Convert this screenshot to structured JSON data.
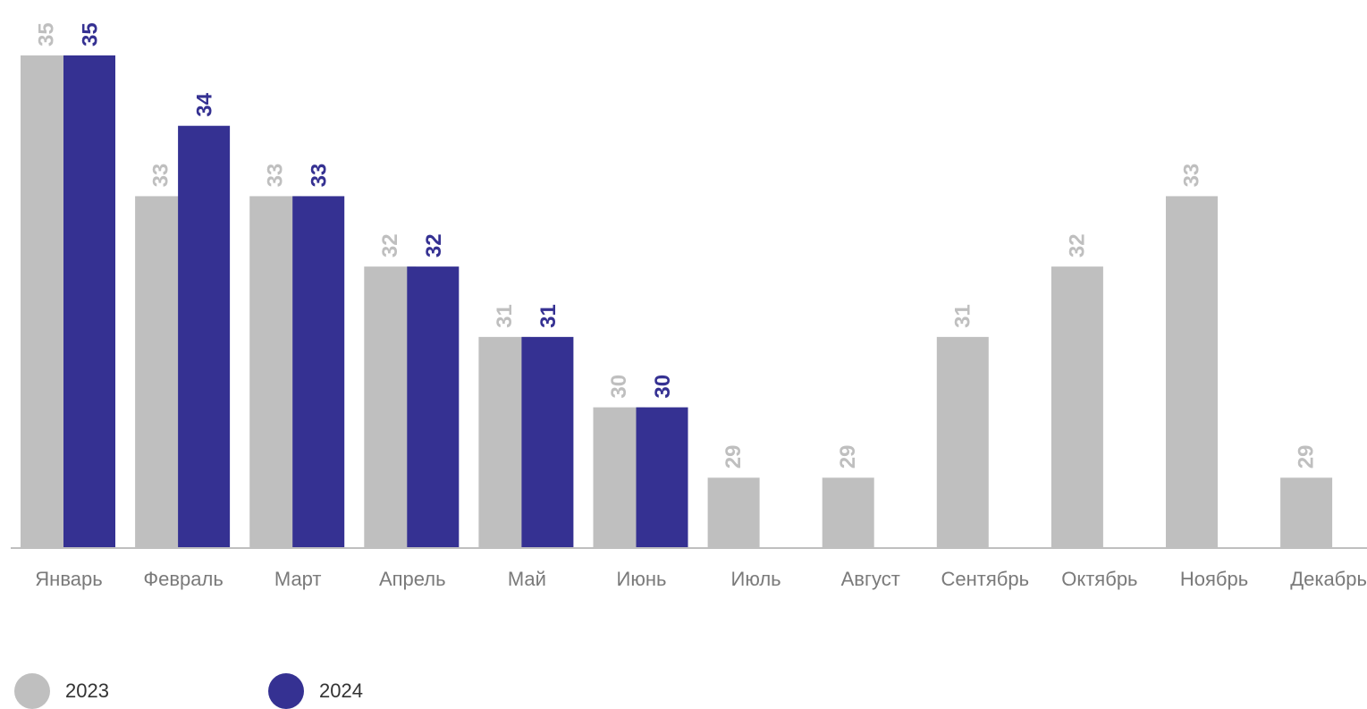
{
  "chart_data": {
    "type": "bar",
    "categories": [
      "Январь",
      "Февраль",
      "Март",
      "Апрель",
      "Май",
      "Июнь",
      "Июль",
      "Август",
      "Сентябрь",
      "Октябрь",
      "Ноябрь",
      "Декабрь"
    ],
    "series": [
      {
        "name": "2023",
        "color": "#bfbfbf",
        "label_color": "#bfbfbf",
        "values": [
          35,
          33,
          33,
          32,
          31,
          30,
          29,
          29,
          31,
          32,
          33,
          29
        ]
      },
      {
        "name": "2024",
        "color": "#353192",
        "label_color": "#353192",
        "values": [
          35,
          34,
          33,
          32,
          31,
          30,
          null,
          null,
          null,
          null,
          null,
          null
        ]
      }
    ],
    "ylim": [
      28,
      35
    ],
    "grid": false,
    "legend_position": "bottom-left"
  }
}
